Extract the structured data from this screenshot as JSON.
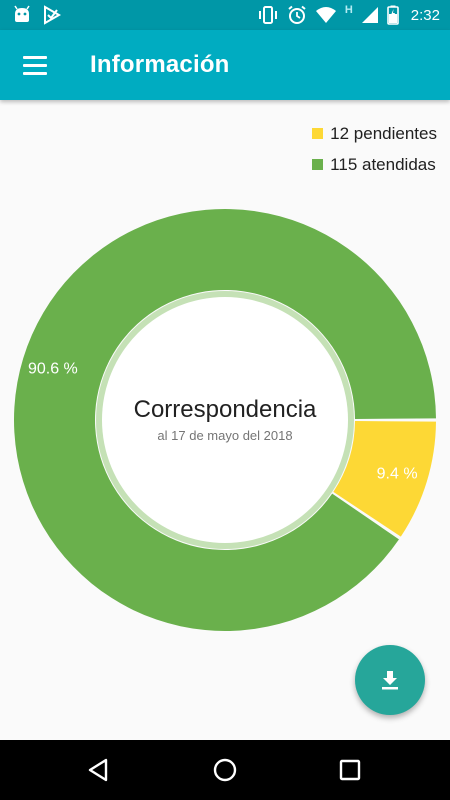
{
  "status_bar": {
    "time": "2:32",
    "network_label": "H",
    "left_icons": [
      "android-icon",
      "play-store-icon"
    ],
    "right_icons": [
      "vibrate-icon",
      "alarm-icon",
      "wifi-icon",
      "signal-icon",
      "battery-icon"
    ]
  },
  "app_bar": {
    "title": "Información"
  },
  "legend": [
    {
      "label": "12 pendientes",
      "color": "#fdd835"
    },
    {
      "label": "115 atendidas",
      "color": "#6ab04c"
    }
  ],
  "chart_data": {
    "type": "pie",
    "categories": [
      "pendientes",
      "atendidas"
    ],
    "values": [
      12,
      115
    ],
    "percent_labels": [
      "9.4 %",
      "90.6 %"
    ],
    "colors": [
      "#fdd835",
      "#6ab04c"
    ],
    "legend_position": "top-right",
    "center_title": "Correspondencia",
    "center_subtitle": "al 17 de mayo del 2018"
  },
  "fab": {
    "icon": "download-icon",
    "color": "#26a69a"
  },
  "nav_bar": {
    "icons": [
      "back-icon",
      "home-icon",
      "recents-icon"
    ]
  },
  "colors": {
    "status_bar": "#0097a7",
    "app_bar": "#00acc1",
    "background": "#fafafa"
  }
}
